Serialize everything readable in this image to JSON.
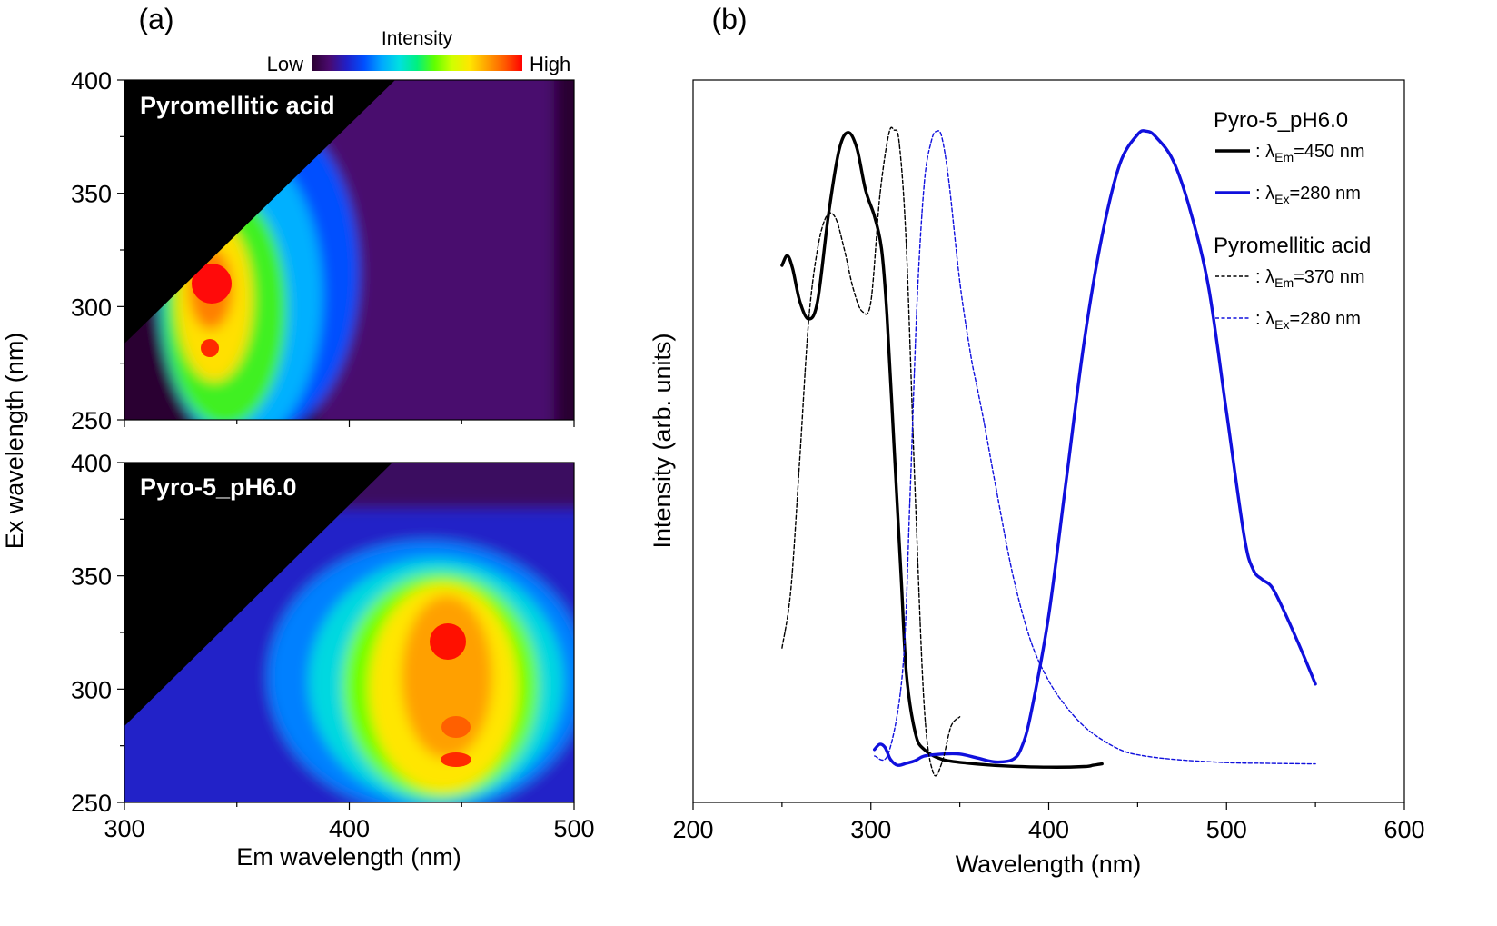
{
  "panel_labels": {
    "a": "(a)",
    "b": "(b)"
  },
  "colorbar": {
    "title": "Intensity",
    "low_label": "Low",
    "high_label": "High",
    "colors": [
      "#2a0030",
      "#4a0a6e",
      "#2020c8",
      "#0050ff",
      "#00a8ff",
      "#00e0e0",
      "#00f080",
      "#60ff00",
      "#d0ff00",
      "#ffe600",
      "#ffa000",
      "#ff5a00",
      "#ff0000"
    ]
  },
  "chart_data": [
    {
      "type": "heatmap",
      "title": "Pyromellitic acid",
      "xlabel": "Em wavelength (nm)",
      "ylabel": "Ex wavelength (nm)",
      "xlim": [
        300,
        500
      ],
      "ylim": [
        250,
        400
      ],
      "xticks": [
        300,
        400,
        500
      ],
      "yticks": [
        250,
        300,
        350,
        400
      ],
      "masked_region": "Em <= Ex + 30 nm (black)",
      "peaks": [
        {
          "em": 340,
          "ex": 310,
          "level": "high"
        },
        {
          "em": 339,
          "ex": 280,
          "level": "high"
        }
      ]
    },
    {
      "type": "heatmap",
      "title": "Pyro-5_pH6.0",
      "xlabel": "Em wavelength (nm)",
      "ylabel": "Ex wavelength (nm)",
      "xlim": [
        300,
        500
      ],
      "ylim": [
        250,
        400
      ],
      "xticks": [
        300,
        400,
        500
      ],
      "yticks": [
        250,
        300,
        350,
        400
      ],
      "masked_region": "Em <= Ex + 30 nm (black)",
      "peaks": [
        {
          "em": 445,
          "ex": 320,
          "level": "high"
        },
        {
          "em": 447,
          "ex": 285,
          "level": "high"
        },
        {
          "em": 447,
          "ex": 269,
          "level": "high"
        }
      ]
    },
    {
      "type": "line",
      "xlabel": "Wavelength (nm)",
      "ylabel": "Intensity (arb. units)",
      "xlim": [
        200,
        600
      ],
      "ylim": [
        0,
        1
      ],
      "xticks": [
        200,
        300,
        400,
        500,
        600
      ],
      "legend_placement": "top-right",
      "legend_groups": [
        "Pyro-5_pH6.0",
        "Pyromellitic acid"
      ],
      "series": [
        {
          "group": "Pyro-5_pH6.0",
          "name_prefix": ": λ",
          "name_sub": "Em",
          "name_suffix": "=450 nm",
          "color": "#000000",
          "dashed": false,
          "x": [
            250,
            253,
            256,
            260,
            265,
            270,
            276,
            282,
            287,
            292,
            297,
            302,
            306,
            309,
            313,
            317,
            320,
            325,
            330,
            340,
            355,
            375,
            400,
            420,
            425,
            430
          ],
          "y": [
            0.775,
            0.79,
            0.77,
            0.72,
            0.693,
            0.72,
            0.85,
            0.95,
            0.978,
            0.955,
            0.89,
            0.85,
            0.8,
            0.7,
            0.5,
            0.3,
            0.15,
            0.06,
            0.035,
            0.02,
            0.014,
            0.01,
            0.008,
            0.009,
            0.011,
            0.013
          ]
        },
        {
          "group": "Pyro-5_pH6.0",
          "name_prefix": ": λ",
          "name_sub": "Ex",
          "name_suffix": "=280 nm",
          "color": "#1010dd",
          "dashed": false,
          "x": [
            302,
            305,
            308,
            311,
            315,
            320,
            325,
            330,
            340,
            350,
            360,
            370,
            380,
            385,
            390,
            400,
            410,
            420,
            430,
            440,
            450,
            455,
            460,
            470,
            480,
            490,
            500,
            510,
            515,
            520,
            525,
            530,
            540,
            550
          ],
          "y": [
            0.035,
            0.043,
            0.038,
            0.02,
            0.011,
            0.014,
            0.018,
            0.025,
            0.028,
            0.028,
            0.022,
            0.016,
            0.02,
            0.04,
            0.09,
            0.24,
            0.45,
            0.66,
            0.82,
            0.93,
            0.975,
            0.98,
            0.972,
            0.935,
            0.855,
            0.74,
            0.55,
            0.36,
            0.31,
            0.295,
            0.285,
            0.26,
            0.2,
            0.135
          ]
        },
        {
          "group": "Pyromellitic acid",
          "name_prefix": ": λ",
          "name_sub": "Em",
          "name_suffix": "=370 nm",
          "color": "#000000",
          "dashed": true,
          "x": [
            250,
            255,
            260,
            265,
            270,
            275,
            280,
            285,
            290,
            295,
            300,
            305,
            310,
            313,
            316,
            320,
            325,
            330,
            335,
            340,
            345,
            350
          ],
          "y": [
            0.19,
            0.28,
            0.48,
            0.69,
            0.8,
            0.85,
            0.848,
            0.8,
            0.74,
            0.705,
            0.72,
            0.88,
            0.975,
            0.982,
            0.96,
            0.8,
            0.42,
            0.1,
            0.0,
            0.015,
            0.07,
            0.085
          ]
        },
        {
          "group": "Pyromellitic acid",
          "name_prefix": ": λ",
          "name_sub": "Ex",
          "name_suffix": "=280 nm",
          "color": "#1010dd",
          "dashed": true,
          "x": [
            302,
            310,
            318,
            322,
            326,
            330,
            334,
            337,
            340,
            344,
            350,
            356,
            360,
            364,
            370,
            380,
            390,
            400,
            410,
            420,
            430,
            440,
            450,
            470,
            500,
            520,
            550
          ],
          "y": [
            0.025,
            0.03,
            0.16,
            0.42,
            0.72,
            0.9,
            0.965,
            0.98,
            0.97,
            0.9,
            0.75,
            0.64,
            0.585,
            0.53,
            0.44,
            0.3,
            0.2,
            0.14,
            0.1,
            0.07,
            0.05,
            0.035,
            0.027,
            0.02,
            0.015,
            0.014,
            0.013
          ]
        }
      ]
    }
  ]
}
